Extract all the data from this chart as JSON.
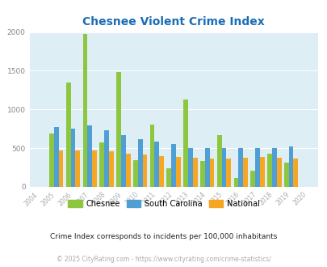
{
  "title": "Chesnee Violent Crime Index",
  "years": [
    2004,
    2005,
    2006,
    2007,
    2008,
    2009,
    2010,
    2011,
    2012,
    2013,
    2014,
    2015,
    2016,
    2017,
    2018,
    2019,
    2020
  ],
  "chesnee": [
    0,
    690,
    1350,
    1980,
    570,
    1480,
    350,
    800,
    240,
    1130,
    330,
    670,
    110,
    210,
    430,
    310,
    0
  ],
  "south_carolina": [
    0,
    775,
    750,
    790,
    730,
    665,
    620,
    580,
    555,
    500,
    505,
    505,
    505,
    505,
    500,
    520,
    0
  ],
  "national": [
    0,
    470,
    475,
    465,
    460,
    430,
    420,
    395,
    390,
    375,
    370,
    370,
    375,
    390,
    375,
    370,
    0
  ],
  "chesnee_color": "#8dc63f",
  "sc_color": "#4f9fd4",
  "national_color": "#f5a623",
  "bg_color": "#ddeef5",
  "title_color": "#1a6db5",
  "ylabel_max": 2000,
  "yticks": [
    0,
    500,
    1000,
    1500,
    2000
  ],
  "subtitle": "Crime Index corresponds to incidents per 100,000 inhabitants",
  "footer": "© 2025 CityRating.com - https://www.cityrating.com/crime-statistics/",
  "legend_labels": [
    "Chesnee",
    "South Carolina",
    "National"
  ]
}
